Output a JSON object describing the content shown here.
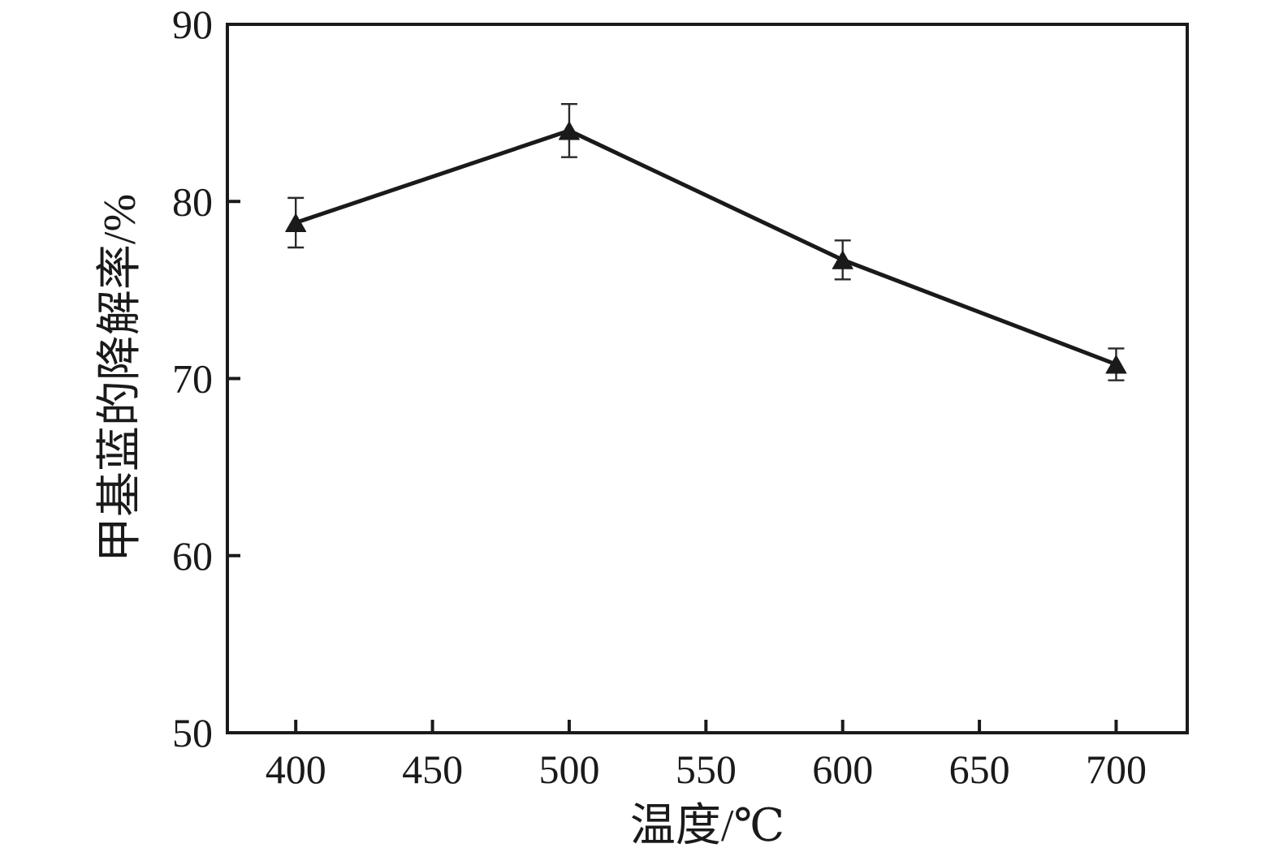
{
  "figure": {
    "background": "#ffffff",
    "axis_color": "#1a1a1a",
    "error_bar_color": "#2a2a2a"
  },
  "chart_data": {
    "type": "line",
    "title": "",
    "xlabel": "温度/℃",
    "ylabel": "甲基蓝的降解率/%",
    "x": [
      400,
      500,
      600,
      700
    ],
    "series": [
      {
        "name": "甲基蓝的降解率",
        "values": [
          78.8,
          84.0,
          76.7,
          70.8
        ],
        "errors": [
          1.4,
          1.5,
          1.1,
          0.9
        ],
        "marker": "triangle-up",
        "color": "#1a1a1a",
        "line_width": 5
      }
    ],
    "xlim": [
      375,
      726
    ],
    "ylim": [
      50,
      90
    ],
    "xticks": [
      400,
      450,
      500,
      550,
      600,
      650,
      700
    ],
    "yticks": [
      50,
      60,
      70,
      80,
      90
    ],
    "grid": false,
    "legend": "none",
    "error_bars": true,
    "frame": "full-box",
    "tick_direction": "in"
  }
}
